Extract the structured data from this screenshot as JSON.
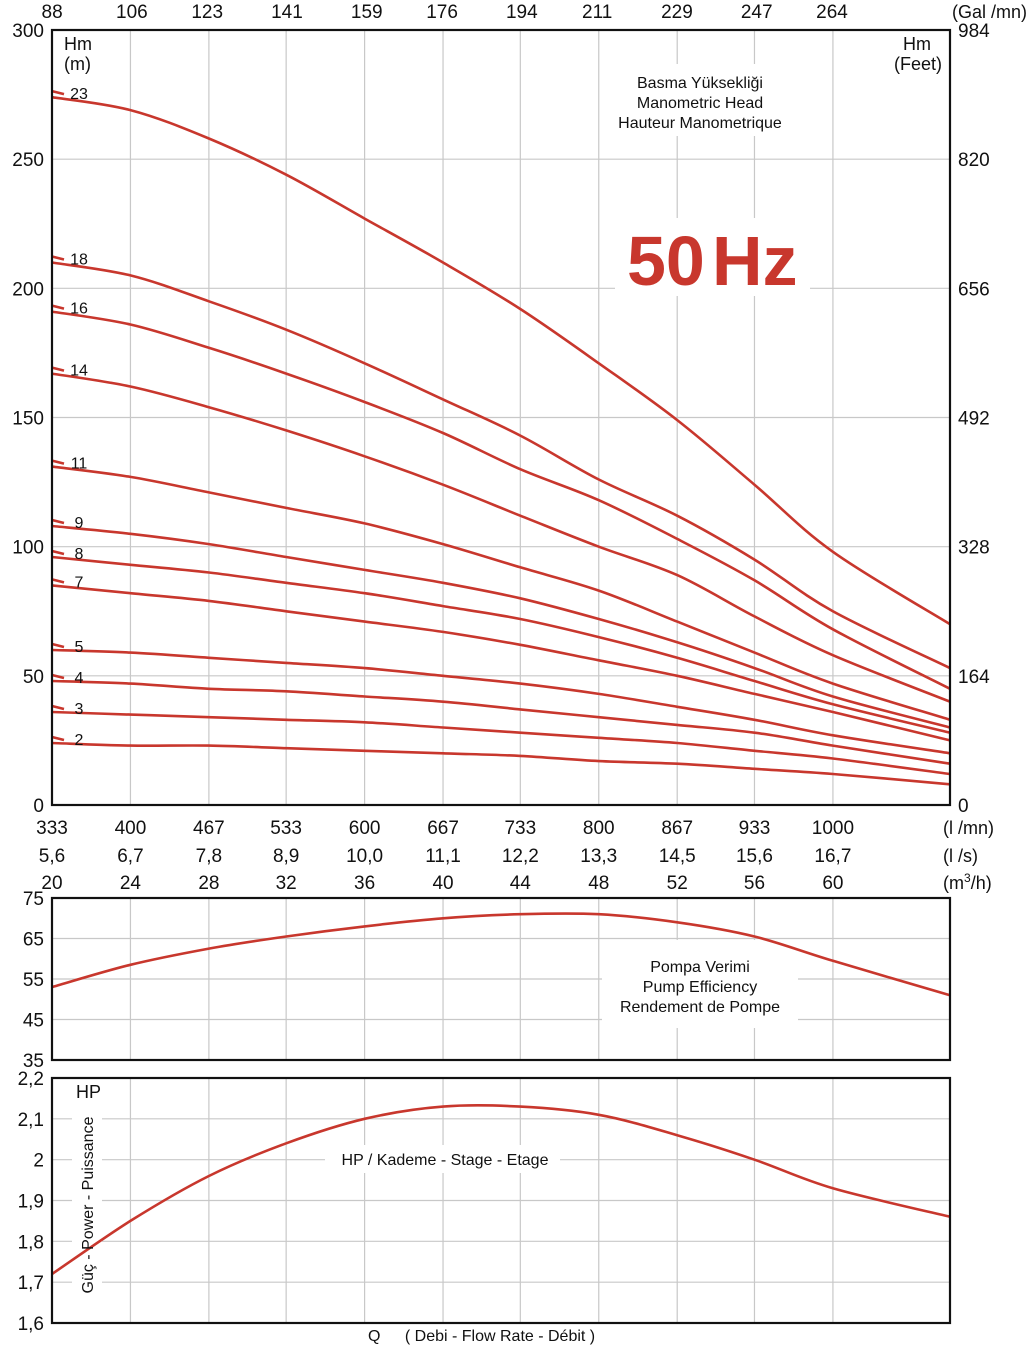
{
  "chart_data": [
    {
      "type": "line",
      "title": "Basma Yüksekliği Manometric Head Hauteur Manometrique",
      "note_lines": [
        "Basma Yüksekliği",
        "Manometric Head",
        "Hauteur Manometrique"
      ],
      "frequency_label": "50 Hz",
      "frequency_parts": [
        "50",
        "Hz"
      ],
      "ylabel_left": [
        "Hm",
        "(m)"
      ],
      "ylabel_right": [
        "Hm",
        "(Feet)"
      ],
      "ylim": [
        0,
        300
      ],
      "xlim_lmn": [
        333,
        1100
      ],
      "y_ticks_left": [
        "0",
        "50",
        "100",
        "150",
        "200",
        "250",
        "300"
      ],
      "y_ticks_right": [
        "0",
        "164",
        "328",
        "492",
        "656",
        "820",
        "984"
      ],
      "x_ticks_top_galmn": [
        "88",
        "106",
        "123",
        "141",
        "159",
        "176",
        "194",
        "211",
        "229",
        "247",
        "264"
      ],
      "x_unit_top": "(Gal /mn)",
      "x_ticks_lmn": [
        "333",
        "400",
        "467",
        "533",
        "600",
        "667",
        "733",
        "800",
        "867",
        "933",
        "1000"
      ],
      "x_unit_lmn": "(l /mn)",
      "x_ticks_ls": [
        "5,6",
        "6,7",
        "7,8",
        "8,9",
        "10,0",
        "11,1",
        "12,2",
        "13,3",
        "14,5",
        "15,6",
        "16,7"
      ],
      "x_unit_ls": "(l /s)",
      "x_ticks_m3h": [
        "20",
        "24",
        "28",
        "32",
        "36",
        "40",
        "44",
        "48",
        "52",
        "56",
        "60"
      ],
      "x_unit_m3h": "(m3/h)",
      "x": [
        333,
        400,
        467,
        533,
        600,
        667,
        733,
        800,
        867,
        933,
        1000,
        1100
      ],
      "series": [
        {
          "name": "23",
          "values": [
            274,
            269,
            258,
            244,
            227,
            210,
            192,
            171,
            149,
            124,
            98,
            70
          ]
        },
        {
          "name": "18",
          "values": [
            210,
            205,
            195,
            184,
            171,
            157,
            143,
            126,
            112,
            95,
            75,
            53
          ]
        },
        {
          "name": "16",
          "values": [
            191,
            186,
            177,
            167,
            156,
            144,
            130,
            118,
            103,
            87,
            68,
            45
          ]
        },
        {
          "name": "14",
          "values": [
            167,
            162,
            154,
            145,
            135,
            124,
            112,
            100,
            89,
            73,
            58,
            40
          ]
        },
        {
          "name": "11",
          "values": [
            131,
            127,
            121,
            115,
            109,
            101,
            92,
            83,
            71,
            59,
            47,
            33
          ]
        },
        {
          "name": "9",
          "values": [
            108,
            105,
            101,
            96,
            91,
            86,
            80,
            72,
            63,
            53,
            42,
            30
          ]
        },
        {
          "name": "8",
          "values": [
            96,
            93,
            90,
            86,
            82,
            77,
            72,
            65,
            57,
            48,
            39,
            28
          ]
        },
        {
          "name": "7",
          "values": [
            85,
            82,
            79,
            75,
            71,
            67,
            62,
            56,
            50,
            43,
            36,
            25
          ]
        },
        {
          "name": "5",
          "values": [
            60,
            59,
            57,
            55,
            53,
            50,
            47,
            43,
            38,
            33,
            27,
            20
          ]
        },
        {
          "name": "4",
          "values": [
            48,
            47,
            45,
            44,
            42,
            40,
            37,
            34,
            31,
            28,
            23,
            16
          ]
        },
        {
          "name": "3",
          "values": [
            36,
            35,
            34,
            33,
            32,
            30,
            28,
            26,
            24,
            21,
            18,
            12
          ]
        },
        {
          "name": "2",
          "values": [
            24,
            23,
            23,
            22,
            21,
            20,
            19,
            17,
            16,
            14,
            12,
            8
          ]
        }
      ],
      "grid": true
    },
    {
      "type": "line",
      "title": "Pompa Verimi Pump Efficiency Rendement de Pompe",
      "note_lines": [
        "Pompa Verimi",
        "Pump Efficiency",
        "Rendement de Pompe"
      ],
      "ylim": [
        35,
        75
      ],
      "y_ticks": [
        "35",
        "45",
        "55",
        "65",
        "75"
      ],
      "x": [
        333,
        400,
        467,
        533,
        600,
        667,
        733,
        800,
        867,
        933,
        1000,
        1100
      ],
      "values": [
        53,
        58.5,
        62.5,
        65.5,
        68,
        70,
        71,
        71,
        69,
        65.5,
        59.5,
        51
      ],
      "grid": true
    },
    {
      "type": "line",
      "title": "HP / Kademe - Stage - Etage",
      "note_lines": [
        "HP / Kademe - Stage - Etage"
      ],
      "ylabel": "Güç - Power - Puissance",
      "unit_label": "HP",
      "ylim": [
        1.6,
        2.2
      ],
      "y_ticks": [
        "1,6",
        "1,7",
        "1,8",
        "1,9",
        "2",
        "2,1",
        "2,2"
      ],
      "x": [
        333,
        400,
        467,
        533,
        600,
        667,
        733,
        800,
        867,
        933,
        1000,
        1100
      ],
      "values": [
        1.72,
        1.85,
        1.96,
        2.04,
        2.1,
        2.13,
        2.13,
        2.11,
        2.06,
        2.0,
        1.93,
        1.86
      ],
      "grid": true
    }
  ],
  "footer": {
    "q": "Q",
    "text": "( Debi - Flow Rate - Débit )"
  },
  "colors": {
    "curve": "#c8372d",
    "grid": "#c8c8c8",
    "frame": "#111111"
  }
}
